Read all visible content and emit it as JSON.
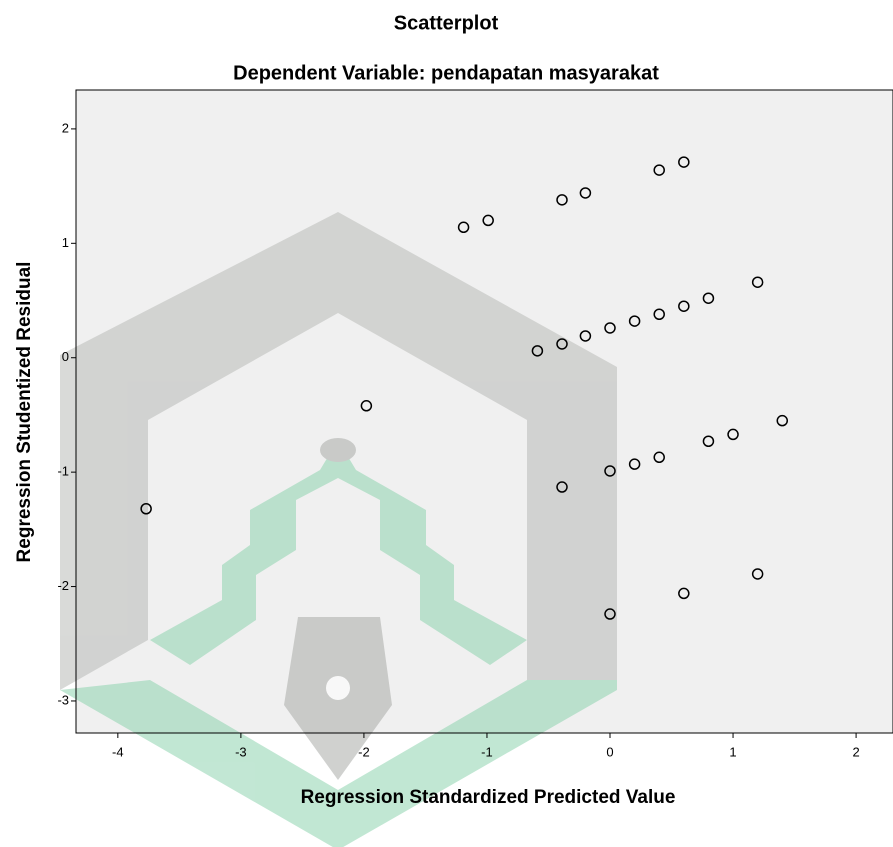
{
  "chart_data": {
    "type": "scatter",
    "title": "Scatterplot",
    "subtitle": "Dependent Variable: pendapatan masyarakat",
    "x_label": "Regression Standardized Predicted Value",
    "y_label": "Regression Studentized Residual",
    "x": [
      -3.77,
      -1.98,
      -1.19,
      -0.99,
      -0.39,
      -0.2,
      0.4,
      0.6,
      -0.59,
      -0.39,
      -0.2,
      0,
      0.2,
      0.4,
      0.6,
      0.8,
      1.2,
      -0.39,
      0,
      0.2,
      0.4,
      0.8,
      1.0,
      1.4,
      0.6,
      1.2,
      0
    ],
    "values": [
      -1.32,
      -0.42,
      1.14,
      1.2,
      1.38,
      1.44,
      1.64,
      1.71,
      0.06,
      0.12,
      0.19,
      0.26,
      0.32,
      0.38,
      0.45,
      0.52,
      0.66,
      -1.13,
      -0.99,
      -0.93,
      -0.87,
      -0.73,
      -0.67,
      -0.55,
      -2.06,
      -1.89,
      -2.24
    ],
    "color": "#000000",
    "background": "#f0f0f0",
    "xlim": [
      -4.34,
      2.3
    ],
    "ylim": [
      -3.28,
      2.34
    ],
    "xticks": [
      -4,
      -3,
      -2,
      -1,
      0,
      1,
      2
    ],
    "yticks": [
      -3,
      -2,
      -1,
      0,
      1,
      2
    ]
  }
}
